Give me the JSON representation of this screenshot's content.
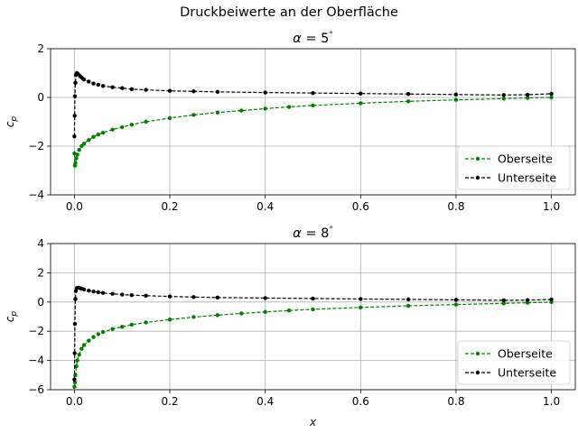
{
  "chart_data": [
    {
      "type": "line",
      "suptitle": "Druckbeiwerte an der Oberfläche",
      "title": "α = 5°",
      "title_parts": {
        "symbol": "α",
        "equals": " = 5",
        "degree": "°"
      },
      "xlabel": "",
      "ylabel": "c_p",
      "xlim": [
        -0.05,
        1.05
      ],
      "ylim": [
        -4,
        2
      ],
      "xticks": [
        0.0,
        0.2,
        0.4,
        0.6,
        0.8,
        1.0
      ],
      "xtick_labels": [
        "0.0",
        "0.2",
        "0.4",
        "0.6",
        "0.8",
        "1.0"
      ],
      "yticks": [
        -4,
        -2,
        0,
        2
      ],
      "ytick_labels": [
        "−4",
        "−2",
        "0",
        "2"
      ],
      "grid": true,
      "legend_position": "lower right",
      "series": [
        {
          "name": "Oberseite",
          "color": "#008000",
          "linestyle": "dashed",
          "marker": "dot",
          "x": [
            0,
            0.001,
            0.002,
            0.004,
            0.006,
            0.01,
            0.015,
            0.02,
            0.03,
            0.04,
            0.05,
            0.06,
            0.08,
            0.1,
            0.12,
            0.15,
            0.2,
            0.25,
            0.3,
            0.35,
            0.4,
            0.45,
            0.5,
            0.6,
            0.7,
            0.8,
            0.9,
            0.95,
            1.0
          ],
          "y": [
            -2.3,
            -2.8,
            -2.7,
            -2.5,
            -2.35,
            -2.15,
            -2.0,
            -1.9,
            -1.75,
            -1.62,
            -1.52,
            -1.45,
            -1.32,
            -1.22,
            -1.12,
            -1.0,
            -0.85,
            -0.72,
            -0.62,
            -0.54,
            -0.46,
            -0.39,
            -0.33,
            -0.24,
            -0.16,
            -0.1,
            -0.05,
            -0.02,
            0.0
          ]
        },
        {
          "name": "Unterseite",
          "color": "#000000",
          "linestyle": "dashed",
          "marker": "dot",
          "x": [
            0,
            0.0005,
            0.001,
            0.002,
            0.003,
            0.005,
            0.008,
            0.012,
            0.016,
            0.02,
            0.03,
            0.04,
            0.05,
            0.06,
            0.08,
            0.1,
            0.12,
            0.15,
            0.2,
            0.25,
            0.3,
            0.4,
            0.5,
            0.6,
            0.7,
            0.8,
            0.9,
            0.95,
            1.0
          ],
          "y": [
            -1.6,
            -0.75,
            0.05,
            0.6,
            0.92,
            1.0,
            0.95,
            0.87,
            0.8,
            0.74,
            0.65,
            0.57,
            0.52,
            0.47,
            0.42,
            0.38,
            0.34,
            0.31,
            0.27,
            0.25,
            0.23,
            0.2,
            0.18,
            0.16,
            0.14,
            0.12,
            0.1,
            0.11,
            0.15
          ]
        }
      ]
    },
    {
      "type": "line",
      "title": "α = 8°",
      "title_parts": {
        "symbol": "α",
        "equals": " = 8",
        "degree": "°"
      },
      "xlabel": "x",
      "ylabel": "c_p",
      "xlim": [
        -0.05,
        1.05
      ],
      "ylim": [
        -6,
        4
      ],
      "xticks": [
        0.0,
        0.2,
        0.4,
        0.6,
        0.8,
        1.0
      ],
      "xtick_labels": [
        "0.0",
        "0.2",
        "0.4",
        "0.6",
        "0.8",
        "1.0"
      ],
      "yticks": [
        -6,
        -4,
        -2,
        0,
        2,
        4
      ],
      "ytick_labels": [
        "−6",
        "−4",
        "−2",
        "0",
        "2",
        "4"
      ],
      "grid": true,
      "legend_position": "lower right",
      "series": [
        {
          "name": "Oberseite",
          "color": "#008000",
          "linestyle": "dashed",
          "marker": "dot",
          "x": [
            0,
            0.001,
            0.002,
            0.004,
            0.006,
            0.01,
            0.015,
            0.02,
            0.03,
            0.04,
            0.05,
            0.06,
            0.08,
            0.1,
            0.12,
            0.15,
            0.2,
            0.25,
            0.3,
            0.35,
            0.4,
            0.45,
            0.5,
            0.6,
            0.7,
            0.8,
            0.9,
            0.95,
            1.0
          ],
          "y": [
            -5.8,
            -5.5,
            -5.0,
            -4.4,
            -4.0,
            -3.6,
            -3.2,
            -2.95,
            -2.65,
            -2.4,
            -2.2,
            -2.05,
            -1.85,
            -1.7,
            -1.55,
            -1.4,
            -1.2,
            -1.03,
            -0.9,
            -0.78,
            -0.68,
            -0.58,
            -0.5,
            -0.37,
            -0.26,
            -0.17,
            -0.09,
            -0.05,
            -0.01
          ]
        },
        {
          "name": "Unterseite",
          "color": "#000000",
          "linestyle": "dashed",
          "marker": "dot",
          "x": [
            0,
            0.0005,
            0.001,
            0.002,
            0.003,
            0.005,
            0.008,
            0.012,
            0.016,
            0.02,
            0.03,
            0.04,
            0.05,
            0.06,
            0.08,
            0.1,
            0.12,
            0.15,
            0.2,
            0.25,
            0.3,
            0.4,
            0.5,
            0.6,
            0.7,
            0.8,
            0.9,
            0.95,
            1.0
          ],
          "y": [
            -5.3,
            -3.5,
            -1.5,
            0.2,
            0.75,
            0.95,
            0.98,
            0.95,
            0.9,
            0.86,
            0.78,
            0.72,
            0.67,
            0.62,
            0.56,
            0.51,
            0.47,
            0.43,
            0.38,
            0.34,
            0.31,
            0.27,
            0.24,
            0.21,
            0.18,
            0.15,
            0.12,
            0.13,
            0.17
          ]
        }
      ]
    }
  ]
}
